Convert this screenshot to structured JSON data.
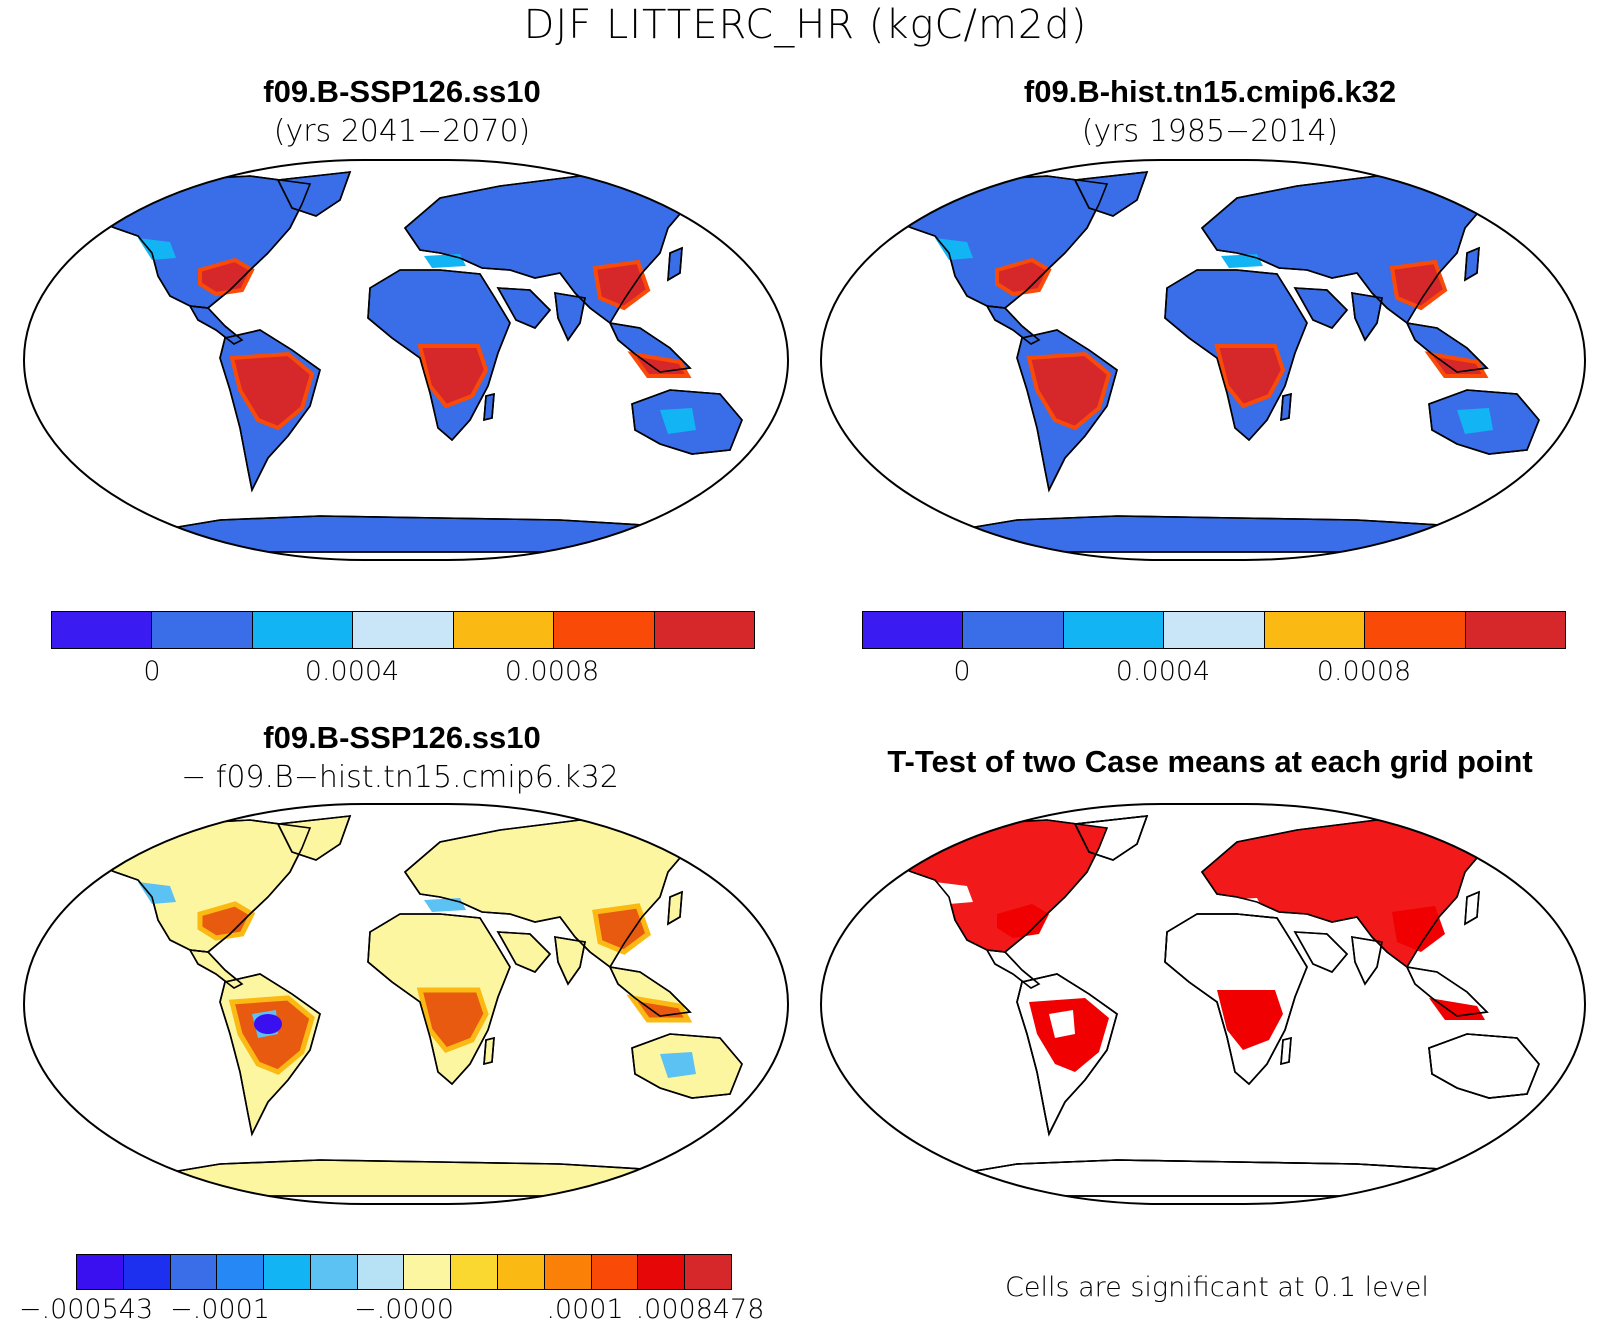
{
  "figure_title": "DJF LITTERC_HR (kgC/m2d)",
  "panels": [
    {
      "id": "p1",
      "title_line1": "f09.B-SSP126.ss10",
      "title_line2": "(yrs 2041−2070)"
    },
    {
      "id": "p2",
      "title_line1": "f09.B-hist.tn15.cmip6.k32",
      "title_line2": "(yrs 1985−2014)"
    },
    {
      "id": "p3",
      "title_line1": "f09.B-SSP126.ss10",
      "title_line2": "− f09.B−hist.tn15.cmip6.k32"
    },
    {
      "id": "p4",
      "title_line1": "T-Test of two Case means at each grid point",
      "title_line2": ""
    }
  ],
  "colorbar_main": {
    "colors": [
      "#3a1cf2",
      "#3a6ee8",
      "#12b4f4",
      "#c8e6f7",
      "#fbb914",
      "#fa4a08",
      "#d6282b"
    ],
    "tick_labels": [
      "0",
      "0.0004",
      "0.0008"
    ]
  },
  "colorbar_diff": {
    "colors": [
      "#3a10f0",
      "#1d30f0",
      "#3a6ee8",
      "#2688f5",
      "#12b4f4",
      "#5cc2f3",
      "#b7e1f4",
      "#fdf6a0",
      "#fbd830",
      "#fbb914",
      "#fb8008",
      "#fa4a08",
      "#e60808",
      "#d6282b"
    ],
    "tick_labels": [
      "−.000543",
      "−.0001",
      "−.0000",
      ".0001",
      ".0008478"
    ]
  },
  "footnote": "Cells are significant at 0.1 level",
  "map_colors": {
    "ocean": "#ffffff",
    "base_abs": "#3a6ee8",
    "light_abs": "#12b4f4",
    "warm_abs": "#fa4a08",
    "hot_abs": "#d6282b",
    "base_diff": "#fdf6a0",
    "warm_diff": "#fbb914",
    "hot_diff": "#e85a10",
    "cool_diff": "#5cc2f3",
    "deep_diff": "#3a10f0",
    "sig": "#f00000"
  }
}
